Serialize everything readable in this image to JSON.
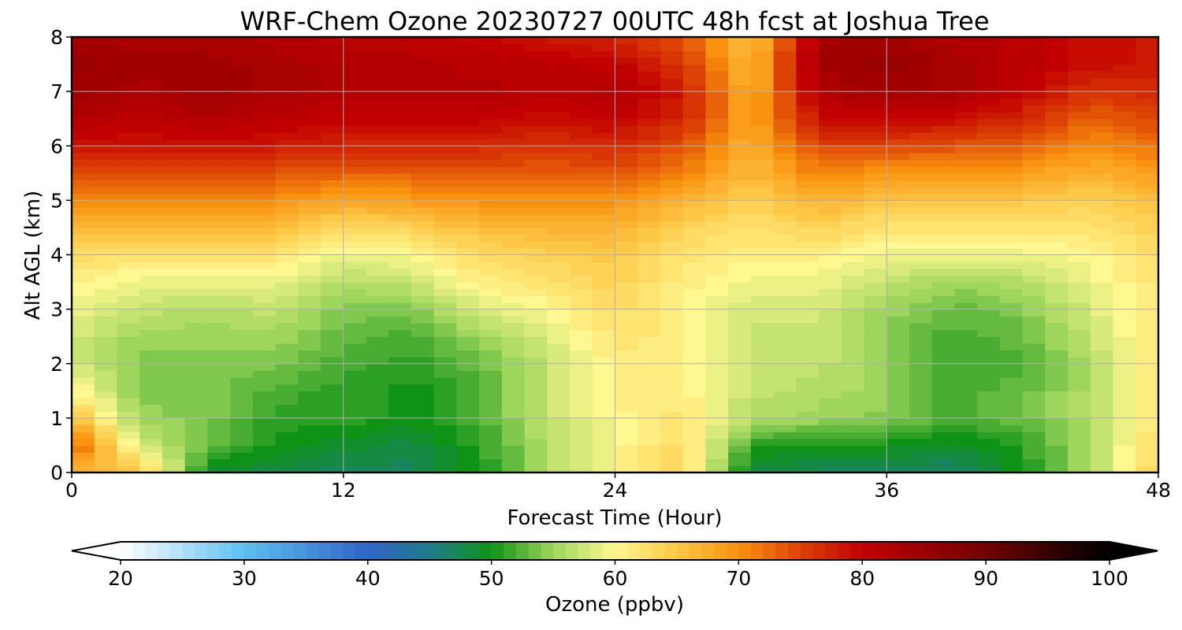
{
  "chart_data": {
    "type": "heatmap",
    "title": "WRF-Chem Ozone  20230727 00UTC 48h fcst at Joshua Tree",
    "xlabel": "Forecast Time (Hour)",
    "ylabel": "Alt AGL (km)",
    "xlim": [
      0,
      48
    ],
    "ylim": [
      0,
      8
    ],
    "x_ticks": [
      "0",
      "12",
      "24",
      "36",
      "48"
    ],
    "y_ticks": [
      "0",
      "1",
      "2",
      "3",
      "4",
      "5",
      "6",
      "7",
      "8"
    ],
    "grid": true,
    "x": [
      0,
      3,
      6,
      9,
      12,
      15,
      18,
      21,
      24,
      27,
      30,
      33,
      36,
      39,
      42,
      45,
      48
    ],
    "y": [
      0,
      0.5,
      1,
      1.5,
      2,
      2.5,
      3,
      3.5,
      4,
      4.5,
      5,
      5.5,
      6,
      6.5,
      7,
      7.5,
      8
    ],
    "z": [
      [
        66,
        66,
        49,
        48,
        47,
        47,
        50,
        56,
        60,
        64,
        48,
        47,
        47,
        46,
        50,
        56,
        64
      ],
      [
        74,
        58,
        53,
        50,
        49,
        48,
        51,
        56,
        60,
        63,
        51,
        50,
        50,
        49,
        51,
        56,
        63
      ],
      [
        66,
        55,
        54,
        51,
        51,
        50,
        52,
        57,
        60,
        62,
        56,
        55,
        54,
        52,
        53,
        56,
        62
      ],
      [
        61,
        54,
        54,
        52,
        51,
        50,
        52,
        57,
        61,
        61,
        57,
        56,
        55,
        52,
        53,
        56,
        62
      ],
      [
        58,
        54,
        54,
        54,
        52,
        51,
        53,
        57,
        61,
        61,
        57,
        57,
        54,
        52,
        52,
        56,
        62
      ],
      [
        58,
        55,
        55,
        55,
        53,
        52,
        55,
        58,
        62,
        61,
        57,
        57,
        54,
        52,
        53,
        57,
        62
      ],
      [
        59,
        57,
        56,
        57,
        54,
        54,
        58,
        60,
        63,
        60,
        58,
        58,
        55,
        53,
        54,
        58,
        62
      ],
      [
        61,
        59,
        59,
        59,
        56,
        57,
        61,
        62,
        64,
        61,
        59,
        59,
        57,
        55,
        56,
        59,
        62
      ],
      [
        63,
        62,
        62,
        62,
        59,
        60,
        63,
        64,
        65,
        62,
        61,
        61,
        59,
        59,
        59,
        60,
        63
      ],
      [
        67,
        66,
        66,
        66,
        63,
        64,
        66,
        67,
        67,
        64,
        62,
        64,
        62,
        62,
        62,
        62,
        64
      ],
      [
        71,
        70,
        71,
        70,
        68,
        69,
        70,
        70,
        70,
        67,
        64,
        67,
        65,
        65,
        65,
        64,
        66
      ],
      [
        75,
        74,
        75,
        74,
        73,
        73,
        74,
        73,
        74,
        71,
        66,
        71,
        69,
        69,
        69,
        67,
        69
      ],
      [
        79,
        78,
        79,
        78,
        77,
        77,
        77,
        76,
        77,
        74,
        67,
        75,
        75,
        74,
        73,
        70,
        72
      ],
      [
        82,
        81,
        82,
        81,
        80,
        80,
        80,
        79,
        80,
        77,
        68,
        79,
        80,
        79,
        77,
        73,
        75
      ],
      [
        84,
        83,
        84,
        83,
        82,
        82,
        82,
        81,
        82,
        78,
        67,
        82,
        84,
        83,
        80,
        76,
        77
      ],
      [
        85,
        84,
        84,
        83,
        82,
        82,
        81,
        81,
        80,
        76,
        66,
        84,
        85,
        83,
        81,
        79,
        78
      ],
      [
        83,
        83,
        83,
        82,
        81,
        81,
        80,
        78,
        77,
        74,
        65,
        83,
        84,
        82,
        81,
        79,
        78
      ]
    ],
    "colorbar": {
      "label": "Ozone  (ppbv)",
      "min": 20,
      "max": 100,
      "ticks": [
        "20",
        "30",
        "40",
        "50",
        "60",
        "70",
        "80",
        "90",
        "100"
      ],
      "extend": "both",
      "colors": [
        {
          "v": 20,
          "c": "#ffffff"
        },
        {
          "v": 30,
          "c": "#5ebfef"
        },
        {
          "v": 40,
          "c": "#2f66c7"
        },
        {
          "v": 45,
          "c": "#217a8a"
        },
        {
          "v": 50,
          "c": "#0f9316"
        },
        {
          "v": 55,
          "c": "#9ed55c"
        },
        {
          "v": 60,
          "c": "#fff890"
        },
        {
          "v": 65,
          "c": "#fcc846"
        },
        {
          "v": 70,
          "c": "#f8920f"
        },
        {
          "v": 75,
          "c": "#dd4205"
        },
        {
          "v": 80,
          "c": "#c20000"
        },
        {
          "v": 90,
          "c": "#700000"
        },
        {
          "v": 100,
          "c": "#000000"
        }
      ]
    }
  }
}
